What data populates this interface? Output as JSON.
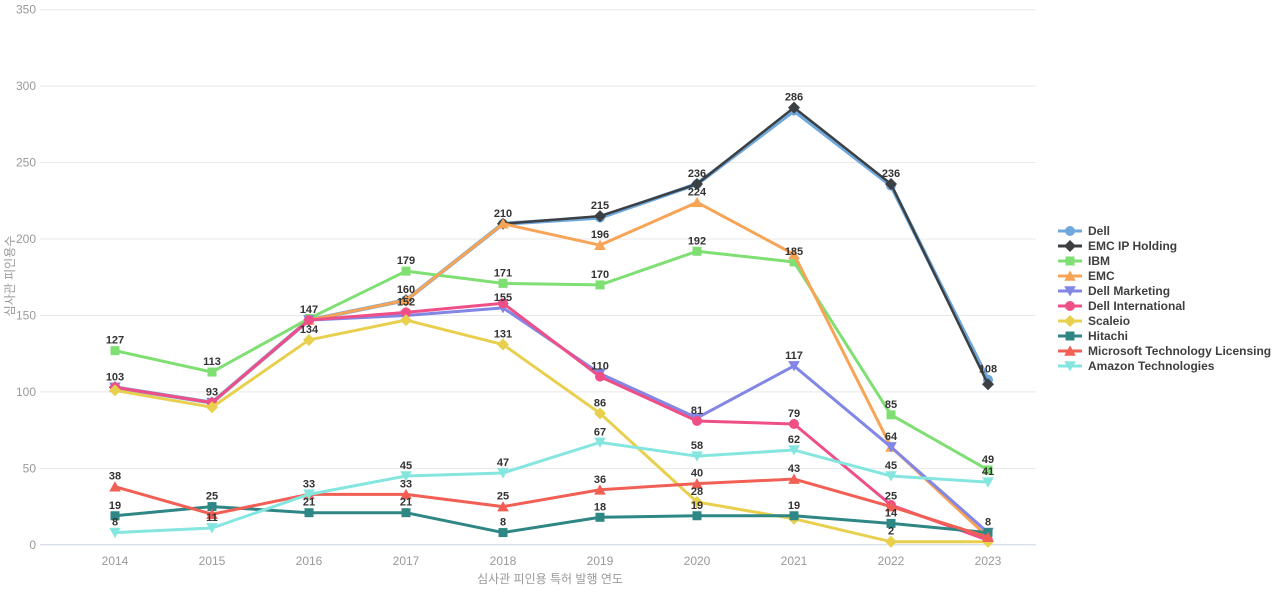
{
  "page": {
    "background": "#ffffff",
    "grid_color": "#e8e8e8",
    "axis_line_color": "#ccd6e8",
    "tick_text_color": "#999999",
    "data_label_color": "#333333",
    "legend_text_color": "#3f3f3f"
  },
  "chart_data": {
    "type": "line",
    "title": "",
    "xlabel": "심사관 피인용 특허 발행 연도",
    "ylabel": "심사관 피인용수",
    "x": [
      2014,
      2015,
      2016,
      2017,
      2018,
      2019,
      2020,
      2021,
      2022,
      2023
    ],
    "ylim": [
      0,
      350
    ],
    "ytick_interval": 50,
    "yticks": [
      0,
      50,
      100,
      150,
      200,
      250,
      300,
      350
    ],
    "grid": "horizontal",
    "legend_position": "right",
    "series": [
      {
        "name": "Dell",
        "color": "#6fa8dc",
        "marker": "circle",
        "values": [
          103,
          93,
          147,
          160,
          210,
          214,
          236,
          284,
          235,
          108
        ],
        "labels": {
          "9": "108"
        }
      },
      {
        "name": "EMC IP Holding",
        "color": "#3c4043",
        "marker": "diamond",
        "values": [
          103,
          93,
          147,
          160,
          210,
          215,
          236,
          286,
          236,
          105
        ],
        "labels": {
          "3": "160",
          "4": "210",
          "5": "215",
          "6": "236",
          "7": "286",
          "8": "236"
        }
      },
      {
        "name": "IBM",
        "color": "#7fdf73",
        "marker": "square",
        "values": [
          127,
          113,
          148,
          179,
          171,
          170,
          192,
          185,
          85,
          49
        ],
        "labels": {
          "0": "127",
          "1": "113",
          "3": "179",
          "4": "171",
          "5": "170",
          "6": "192",
          "7": "185",
          "8": "85",
          "9": "49"
        }
      },
      {
        "name": "EMC",
        "color": "#f7a456",
        "marker": "triangle-up",
        "values": [
          103,
          93,
          147,
          160,
          210,
          196,
          224,
          190,
          64,
          5
        ],
        "labels": {
          "5": "196",
          "6": "224",
          "8": "64"
        }
      },
      {
        "name": "Dell Marketing",
        "color": "#8286e5",
        "marker": "triangle-down",
        "values": [
          103,
          93,
          147,
          150,
          155,
          112,
          83,
          117,
          64,
          8
        ],
        "labels": {
          "4": "155",
          "7": "117"
        }
      },
      {
        "name": "Dell International",
        "color": "#ef4f87",
        "marker": "circle",
        "values": [
          103,
          93,
          147,
          152,
          158,
          110,
          81,
          79,
          26,
          3
        ],
        "labels": {
          "0": "103",
          "1": "93",
          "2": "147",
          "3": "152",
          "5": "110",
          "6": "81",
          "7": "79"
        }
      },
      {
        "name": "Scaleio",
        "color": "#e8d04e",
        "marker": "diamond",
        "values": [
          101,
          90,
          134,
          147,
          131,
          86,
          28,
          17,
          2,
          2
        ],
        "labels": {
          "2": "134",
          "4": "131",
          "5": "86",
          "6": "28",
          "8": "2"
        }
      },
      {
        "name": "Hitachi",
        "color": "#2e8784",
        "marker": "square",
        "values": [
          19,
          25,
          21,
          21,
          8,
          18,
          19,
          19,
          14,
          8
        ],
        "labels": {
          "0": "19",
          "1": "25",
          "2": "21",
          "3": "21",
          "4": "8",
          "5": "18",
          "6": "19",
          "7": "19",
          "8": "14",
          "9": "8"
        }
      },
      {
        "name": "Microsoft Technology Licensing",
        "color": "#f15f55",
        "marker": "triangle-up",
        "values": [
          38,
          20,
          33,
          33,
          25,
          36,
          40,
          43,
          25,
          5
        ],
        "labels": {
          "0": "38",
          "3": "33",
          "4": "25",
          "5": "36",
          "6": "40",
          "7": "43",
          "8": "25"
        }
      },
      {
        "name": "Amazon Technologies",
        "color": "#85e6df",
        "marker": "triangle-down",
        "values": [
          8,
          11,
          33,
          45,
          47,
          67,
          58,
          62,
          45,
          41
        ],
        "labels": {
          "0": "8",
          "1": "11",
          "2": "33",
          "3": "45",
          "4": "47",
          "5": "67",
          "6": "58",
          "7": "62",
          "8": "45",
          "9": "41"
        }
      }
    ]
  }
}
